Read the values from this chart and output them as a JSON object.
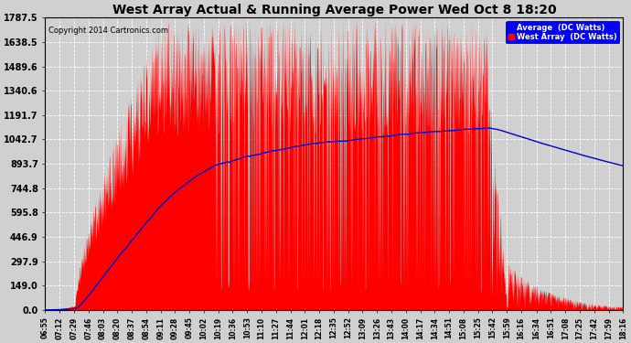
{
  "title": "West Array Actual & Running Average Power Wed Oct 8 18:20",
  "copyright": "Copyright 2014 Cartronics.com",
  "legend_avg": "Average  (DC Watts)",
  "legend_west": "West Array  (DC Watts)",
  "ylabel_values": [
    0.0,
    149.0,
    297.9,
    446.9,
    595.8,
    744.8,
    893.7,
    1042.7,
    1191.7,
    1340.6,
    1489.6,
    1638.5,
    1787.5
  ],
  "ymax": 1787.5,
  "ymin": 0.0,
  "bg_color": "#d0d0d0",
  "plot_bg_color": "#d0d0d0",
  "grid_color": "#ffffff",
  "title_color": "#000000",
  "red_fill": "#ff0000",
  "blue_line": "#0000cc",
  "x_tick_labels": [
    "06:55",
    "07:12",
    "07:29",
    "07:46",
    "08:03",
    "08:20",
    "08:37",
    "08:54",
    "09:11",
    "09:28",
    "09:45",
    "10:02",
    "10:19",
    "10:36",
    "10:53",
    "11:10",
    "11:27",
    "11:44",
    "12:01",
    "12:18",
    "12:35",
    "12:52",
    "13:09",
    "13:26",
    "13:43",
    "14:00",
    "14:17",
    "14:34",
    "14:51",
    "15:08",
    "15:25",
    "15:42",
    "15:59",
    "16:16",
    "16:34",
    "16:51",
    "17:08",
    "17:25",
    "17:42",
    "17:59",
    "18:16"
  ],
  "start_hhmm": "06:55",
  "end_hhmm": "18:16"
}
